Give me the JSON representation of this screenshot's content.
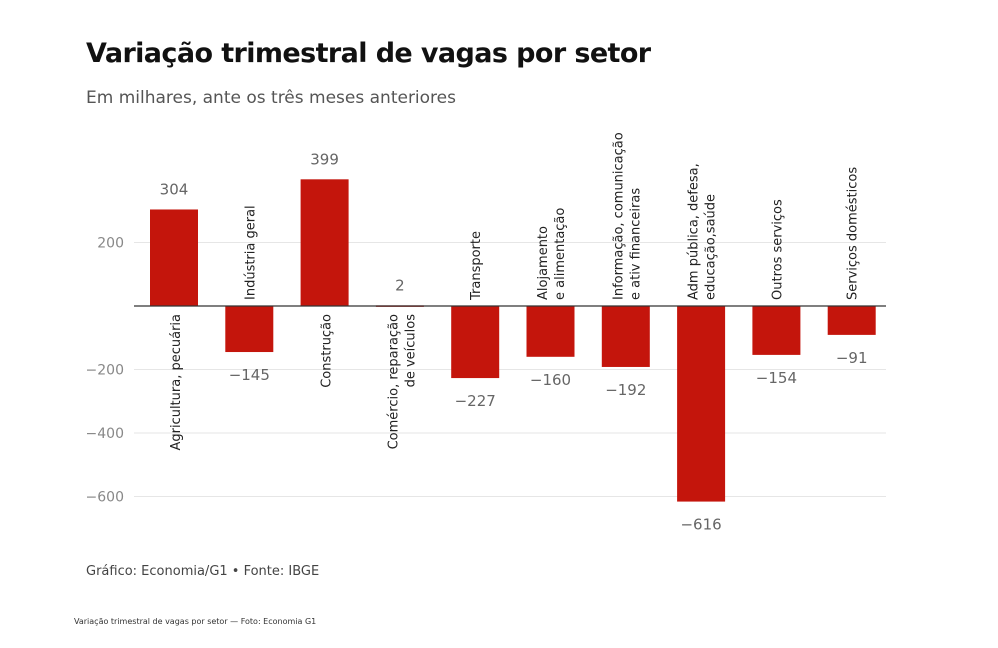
{
  "chart_data": {
    "type": "bar",
    "title": "Variação trimestral de vagas por setor",
    "subtitle": "Em milhares, ante os três meses anteriores",
    "categories": [
      [
        "Agricultura, pecuária"
      ],
      [
        "Indústria geral"
      ],
      [
        "Construção"
      ],
      [
        "Comércio, reparação",
        "de veículos"
      ],
      [
        "Transporte"
      ],
      [
        "Alojamento",
        "e alimentação"
      ],
      [
        "Informação, comunicação",
        "e ativ financeiras"
      ],
      [
        "Adm pública, defesa,",
        "educação,saúde"
      ],
      [
        "Outros serviços"
      ],
      [
        "Serviços domésticos"
      ]
    ],
    "values": [
      304,
      -145,
      399,
      2,
      -227,
      -160,
      -192,
      -616,
      -154,
      -91
    ],
    "value_labels": [
      "304",
      "−145",
      "399",
      "2",
      "−227",
      "−160",
      "−192",
      "−616",
      "−154",
      "−91"
    ],
    "ylim": [
      -640,
      410
    ],
    "yticks": [
      200,
      -200,
      -400,
      -600
    ],
    "ytick_labels": [
      "200",
      "−200",
      "−400",
      "−600"
    ],
    "grid": true,
    "bar_color": "#c4150c"
  },
  "source": "Gráfico: Economia/G1 • Fonte: IBGE",
  "caption": "Variação trimestral de vagas por setor — Foto: Economia G1"
}
